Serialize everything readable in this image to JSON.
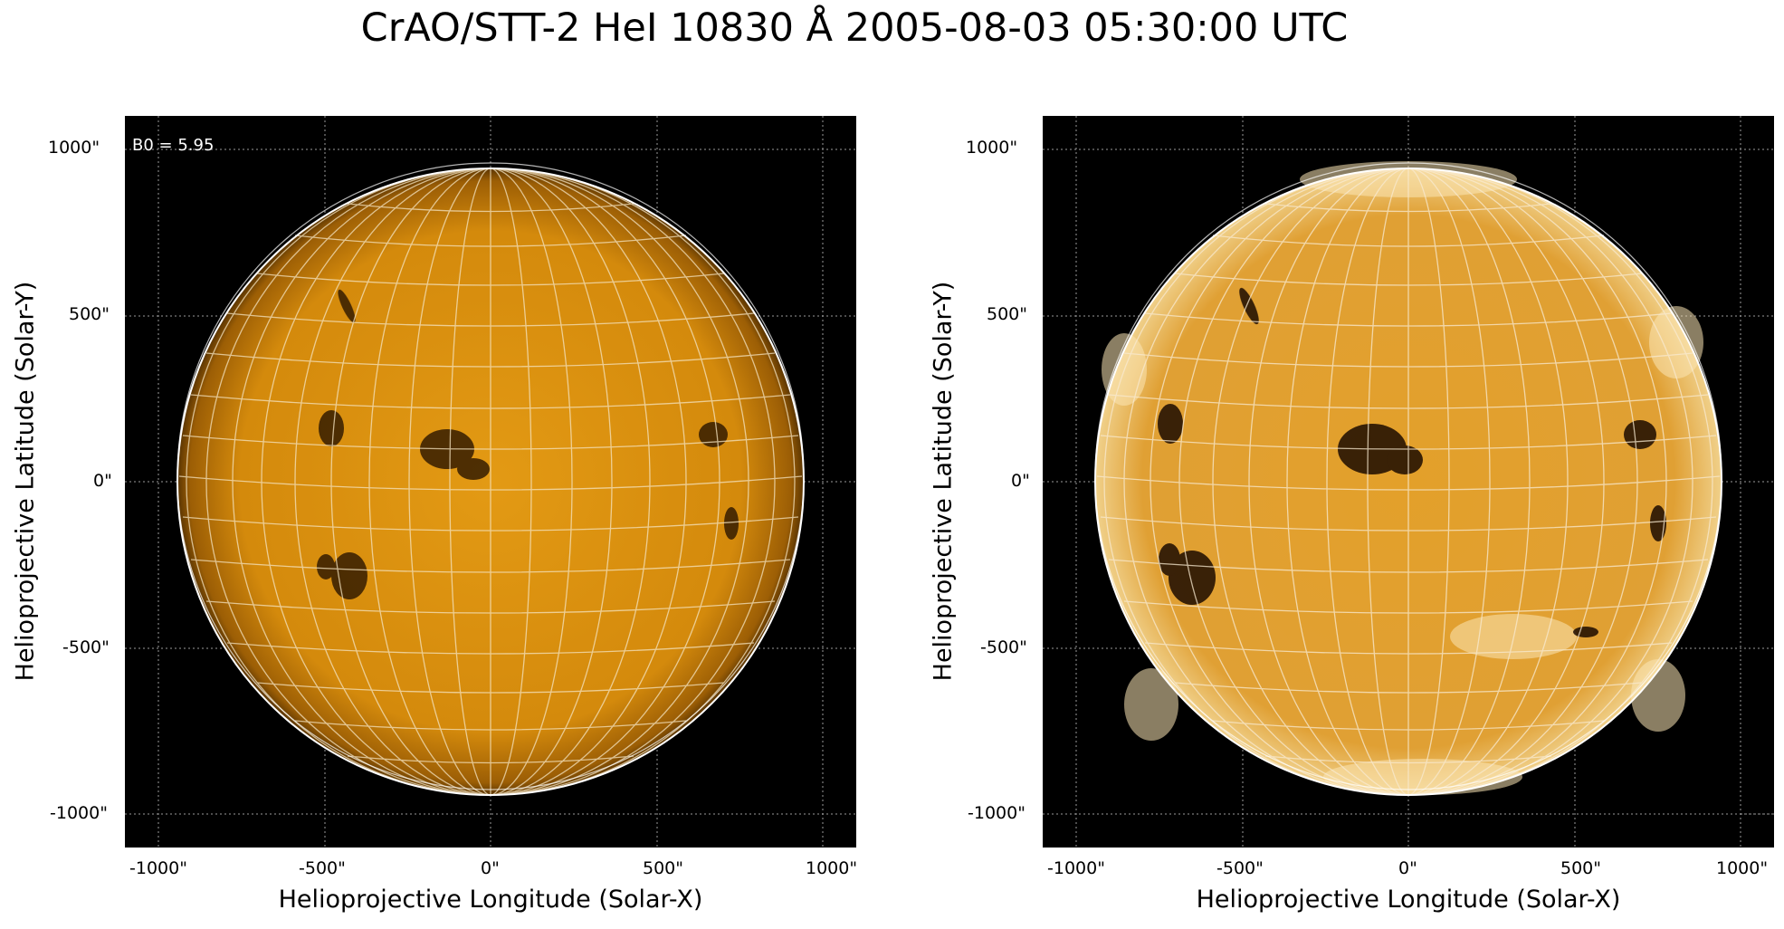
{
  "figure": {
    "title": "CrAO/STT-2 HeI 10830 Å 2005-08-03 05:30:00 UTC"
  },
  "panels": [
    {
      "id": "left",
      "annotation": "B0 = 5.95",
      "xlabel": "Helioprojective Longitude (Solar-X)",
      "ylabel": "Helioprojective Latitude (Solar-Y)",
      "xticks": [
        "-1000\"",
        "-500\"",
        "0\"",
        "500\"",
        "1000\""
      ],
      "yticks": [
        "1000\"",
        "500\"",
        "0\"",
        "-500\"",
        "-1000\""
      ]
    },
    {
      "id": "right",
      "annotation": "",
      "xlabel": "Helioprojective Longitude (Solar-X)",
      "ylabel": "Helioprojective Latitude (Solar-Y)",
      "xticks": [
        "-1000\"",
        "-500\"",
        "0\"",
        "500\"",
        "1000\""
      ],
      "yticks": [
        "1000\"",
        "500\"",
        "0\"",
        "-500\"",
        "-1000\""
      ]
    }
  ],
  "colors": {
    "background": "#000000",
    "disk": "#d8900c",
    "grid": "#ffffff"
  }
}
